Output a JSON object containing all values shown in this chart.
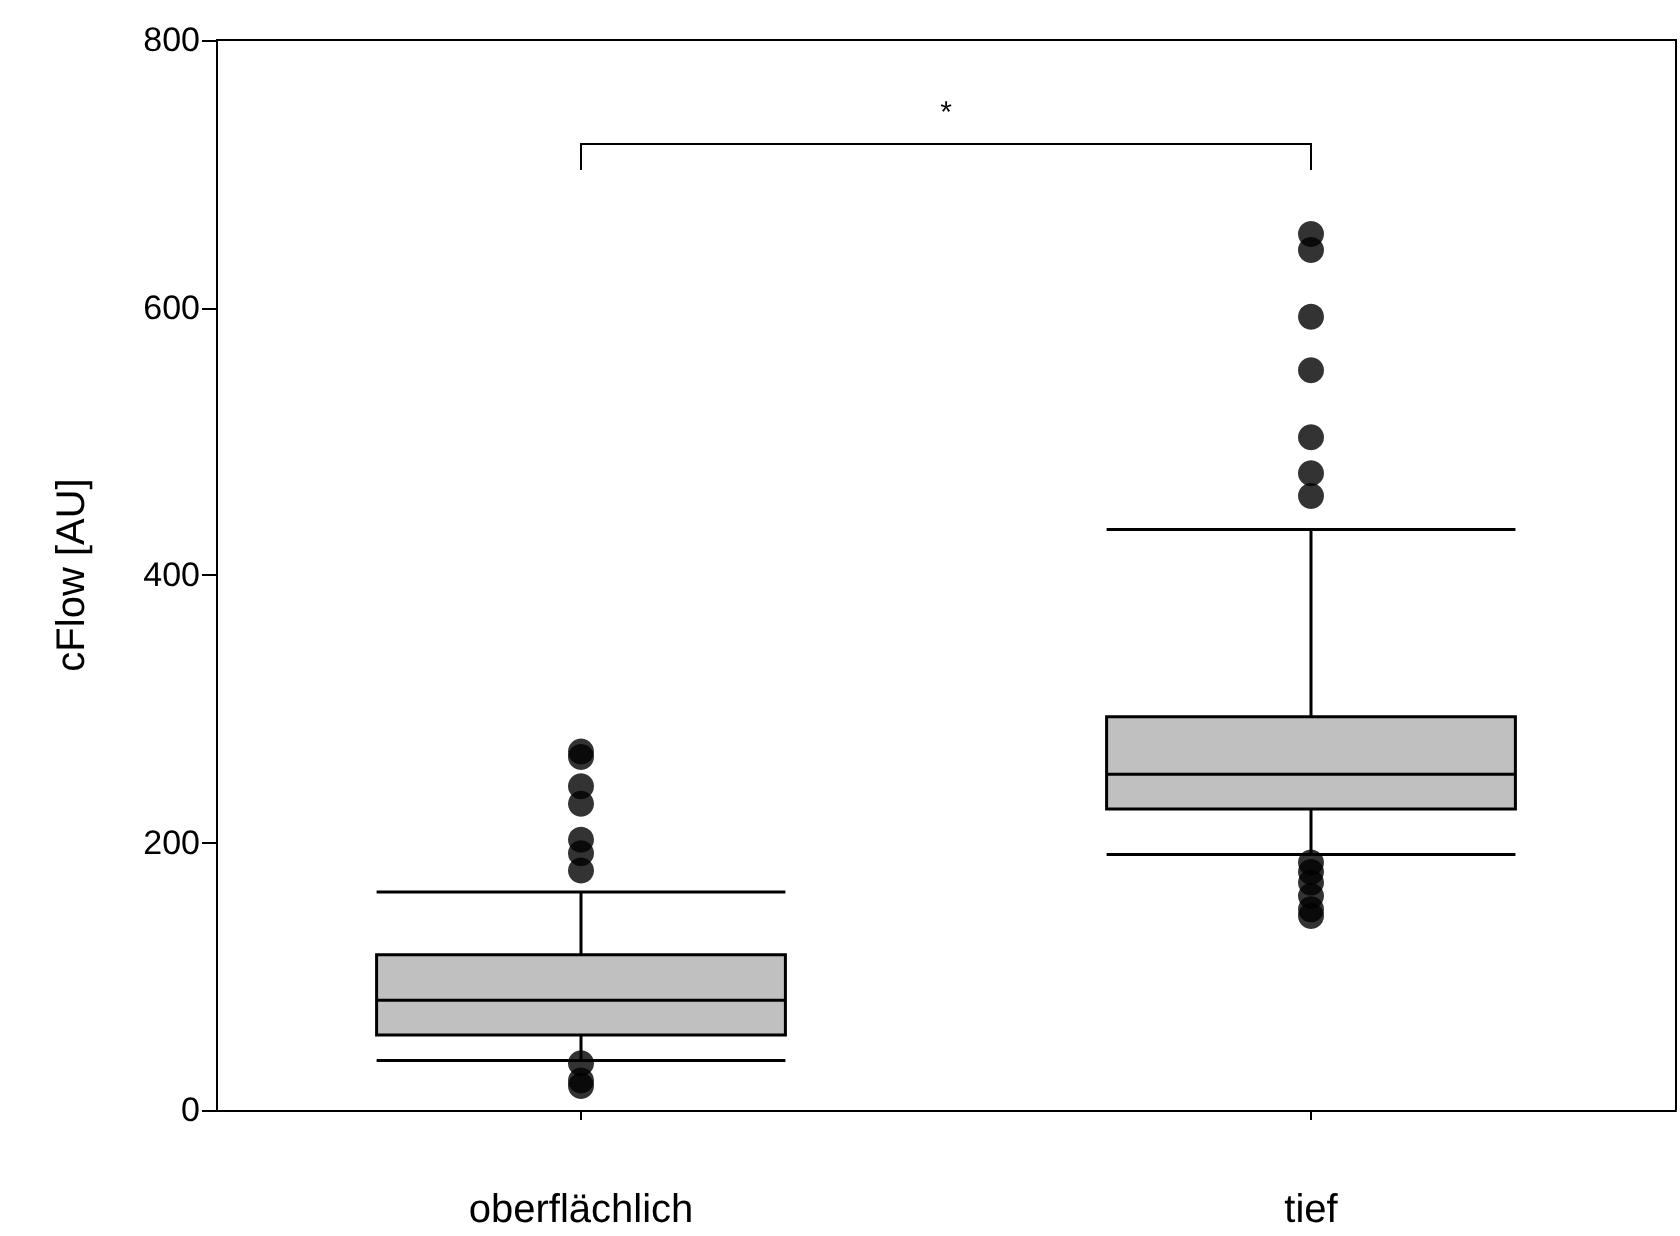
{
  "chart_data": {
    "type": "box",
    "ylabel": "cFlow [AU]",
    "categories": [
      "oberflächlich",
      "tief"
    ],
    "color": "#c0c0c0",
    "boxes": [
      {
        "low": 37,
        "q1": 56,
        "median": 82,
        "q3": 116,
        "high": 163,
        "outliers": [
          268,
          264,
          242,
          229,
          202,
          192,
          179,
          35,
          22,
          18
        ]
      },
      {
        "low": 191,
        "q1": 225,
        "median": 251,
        "q3": 294,
        "high": 434,
        "outliers": [
          655,
          643,
          593,
          553,
          503,
          476,
          459,
          185,
          178,
          170,
          160,
          150,
          145
        ]
      }
    ],
    "ylim": [
      0,
      800
    ],
    "yticks": [
      0,
      200,
      400,
      600,
      800
    ],
    "grid": false,
    "annotations": [
      "*"
    ]
  }
}
